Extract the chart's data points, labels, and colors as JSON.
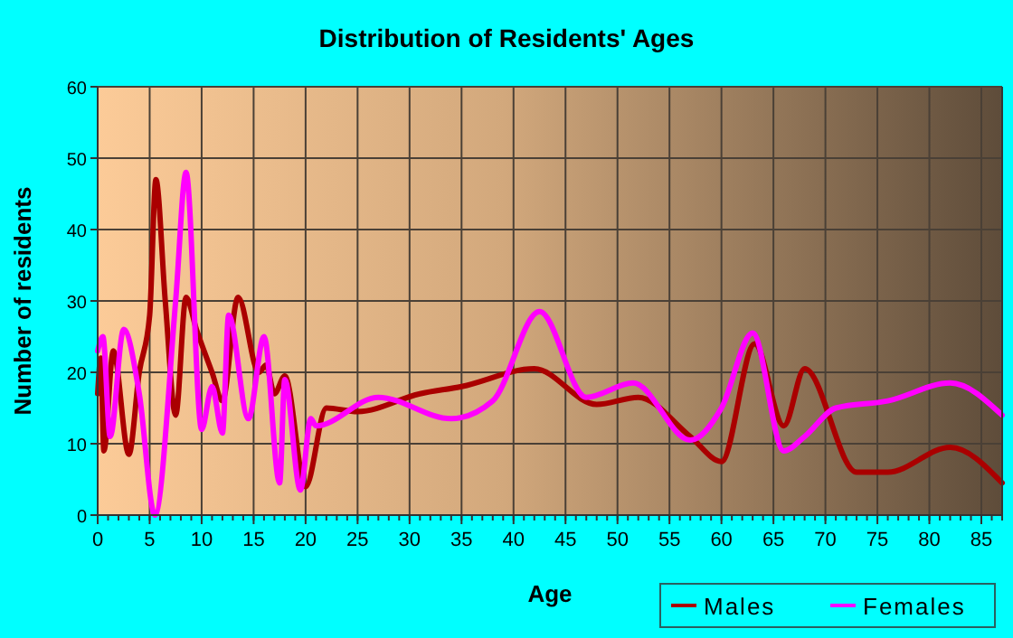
{
  "chart_data": {
    "type": "line",
    "title": "Distribution of Residents' Ages",
    "xlabel": "Age",
    "ylabel": "Number of residents",
    "xlim": [
      0,
      87
    ],
    "xticks": [
      0,
      5,
      10,
      15,
      20,
      25,
      30,
      35,
      40,
      45,
      50,
      55,
      60,
      65,
      70,
      75,
      80,
      85
    ],
    "ylim": [
      0,
      60
    ],
    "yticks": [
      0,
      10,
      20,
      30,
      40,
      50,
      60
    ],
    "grid": true,
    "legend": "bottom right",
    "marker": "none",
    "line_style": "solid",
    "series": [
      {
        "name": "Males",
        "color": "#aa0000",
        "x": [
          0,
          0.3,
          0.6,
          1.5,
          3,
          4,
          5,
          5.6,
          6.5,
          7.5,
          8.5,
          9.5,
          11,
          12,
          13.5,
          15.5,
          16.2,
          17,
          18,
          20,
          22,
          25,
          31,
          35,
          42,
          48,
          52,
          57,
          60,
          63.2,
          66,
          68,
          73,
          76,
          82,
          87
        ],
        "values": [
          17,
          22,
          9,
          23,
          8.5,
          20,
          28,
          47,
          30,
          14,
          30.5,
          26,
          20,
          16,
          30.5,
          20,
          21,
          17,
          19.5,
          4,
          15,
          14.5,
          17,
          18,
          20.5,
          15.5,
          16.5,
          11,
          7.5,
          24,
          12.5,
          20.5,
          6,
          6,
          9.5,
          4.5
        ]
      },
      {
        "name": "Females",
        "color": "#ff00ff",
        "x": [
          0,
          0.5,
          1.2,
          2.5,
          4,
          5.5,
          7.5,
          8.5,
          10,
          11,
          12,
          12.6,
          14.5,
          16,
          17.5,
          18,
          19.5,
          20.5,
          21,
          27,
          34,
          38,
          42.5,
          47,
          51.5,
          57,
          60,
          63,
          66,
          68,
          71,
          76,
          82,
          87
        ],
        "values": [
          23,
          25,
          11,
          26,
          17,
          0,
          30,
          48,
          12,
          18,
          11.5,
          28,
          13.5,
          25,
          4.5,
          19,
          3.5,
          13.5,
          12.5,
          16.5,
          13.5,
          16,
          28.5,
          16.5,
          18.5,
          10.5,
          15,
          25.5,
          9,
          11,
          15,
          16,
          18.5,
          14
        ]
      }
    ]
  }
}
